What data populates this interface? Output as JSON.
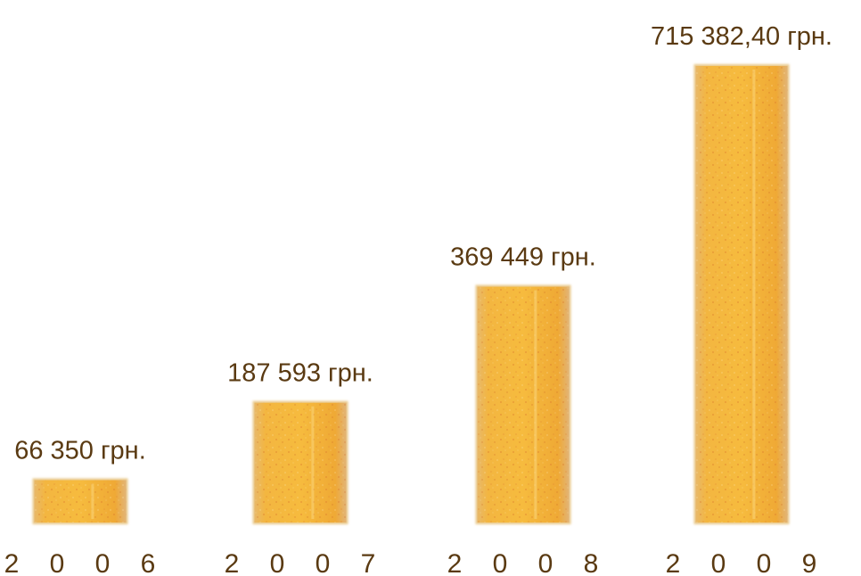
{
  "chart_data": {
    "type": "bar",
    "categories": [
      "2 0 0 6",
      "2 0 0 7",
      "2 0 0 8",
      "2 0 0 9"
    ],
    "values": [
      66350,
      187593,
      369449,
      715382.4
    ],
    "data_labels": [
      "66 350 грн.",
      "187 593 грн.",
      "369 449 грн.",
      "715 382,40 грн."
    ],
    "title": "",
    "xlabel": "",
    "ylabel": "",
    "grid": false,
    "bar_color": "#f2b43c",
    "text_color": "#5a3a12"
  }
}
